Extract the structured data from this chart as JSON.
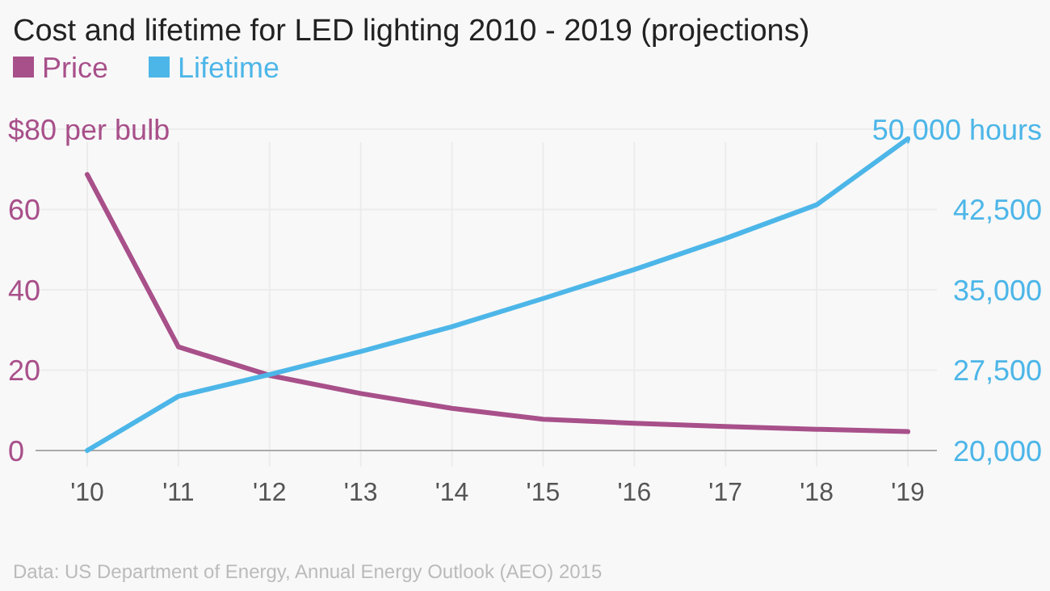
{
  "chart_data": {
    "type": "line",
    "title": "Cost and lifetime for LED lighting 2010 - 2019 (projections)",
    "categories": [
      "'10",
      "'11",
      "'12",
      "'13",
      "'14",
      "'15",
      "'16",
      "'17",
      "'18",
      "'19"
    ],
    "series": [
      {
        "name": "Price",
        "color": "#a8508a",
        "values": [
          68.7,
          25.8,
          18.7,
          14.2,
          10.5,
          7.8,
          6.8,
          6.0,
          5.3,
          4.7
        ]
      },
      {
        "name": "Lifetime",
        "color": "#4db6e8",
        "axis": "y2",
        "values": [
          20000,
          25060,
          27100,
          29250,
          31560,
          34190,
          36900,
          39800,
          42940,
          49100
        ]
      }
    ],
    "ylim": [
      0,
      80
    ],
    "yticks": [
      0,
      20,
      40,
      60,
      {
        "value": 80,
        "label": "$80 per bulb"
      }
    ],
    "y2lim": [
      20000,
      50000
    ],
    "y2ticks": [
      {
        "value": 20000,
        "label": "20,000"
      },
      {
        "value": 27500,
        "label": "27,500"
      },
      {
        "value": 35000,
        "label": "35,000"
      },
      {
        "value": 42500,
        "label": "42,500"
      },
      {
        "value": 50000,
        "label": "50,000 hours"
      }
    ],
    "grid": true,
    "legend": "top left",
    "marker": "none",
    "line_style": "solid",
    "annotations": [
      "Data: US Department of Energy, Annual Energy Outlook (AEO) 2015"
    ]
  }
}
